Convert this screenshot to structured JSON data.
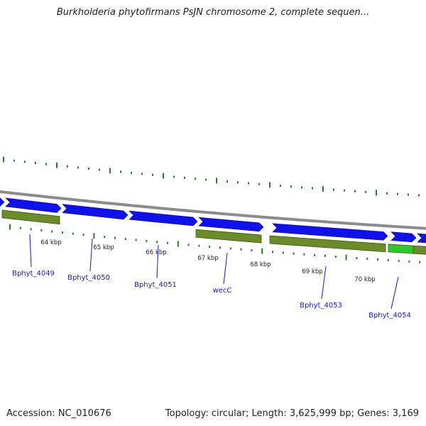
{
  "title": "Burkholderia phytofirmans PsJN chromosome 2, complete sequen...",
  "footer": {
    "accession": "Accession: NC_010676",
    "summary": "Topology: circular; Length: 3,625,999 bp; Genes: 3,169"
  },
  "scale_labels": [
    "64 kbp",
    "65 kbp",
    "66 kbp",
    "67 kbp",
    "68 kbp",
    "69 kbp",
    "70 kbp"
  ],
  "genes": [
    {
      "name": "Bphyt_4049"
    },
    {
      "name": "Bphyt_4050"
    },
    {
      "name": "Bphyt_4051"
    },
    {
      "name": "wecC"
    },
    {
      "name": "Bphyt_4053"
    },
    {
      "name": "Bphyt_4054"
    }
  ],
  "colors": {
    "cds_forward": "#1010e8",
    "gene_olive": "#6b8a2a",
    "gene_highlight": "#2ec82e",
    "backbone": "#8c8c8c",
    "tick": "#2a7a2a",
    "gene_label": "#1a1aa8"
  }
}
